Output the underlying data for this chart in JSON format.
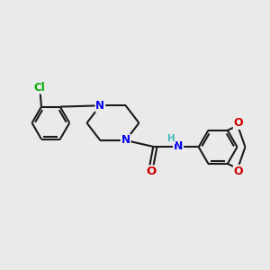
{
  "bg_color": "#eaeaea",
  "bond_color": "#1a1a1a",
  "bond_lw": 1.5,
  "atom_colors": {
    "N": "#0000ee",
    "O": "#cc0000",
    "Cl": "#00aa00",
    "H": "#44bbbb"
  },
  "fs": 8.5,
  "dbo": 0.055
}
